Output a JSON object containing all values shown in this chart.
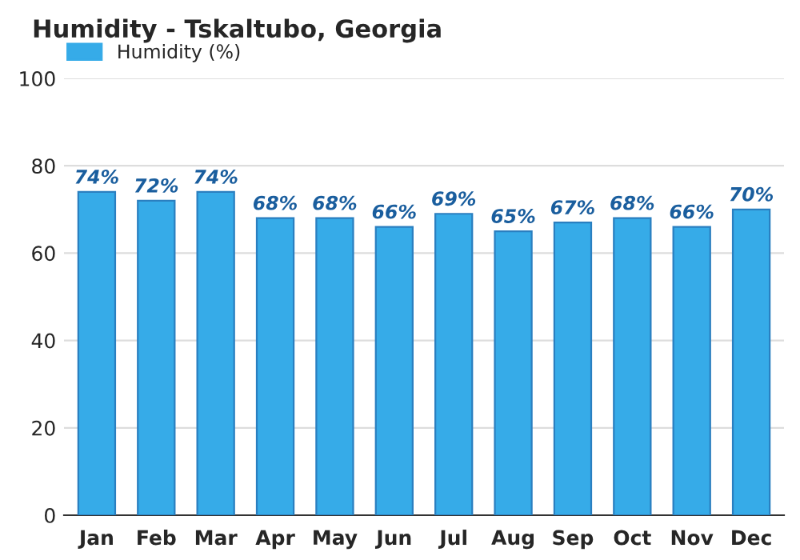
{
  "chart_data": {
    "type": "bar",
    "title": "Humidity - Tskaltubo, Georgia",
    "categories": [
      "Jan",
      "Feb",
      "Mar",
      "Apr",
      "May",
      "Jun",
      "Jul",
      "Aug",
      "Sep",
      "Oct",
      "Nov",
      "Dec"
    ],
    "series": [
      {
        "name": "Humidity (%)",
        "color": "#36abe8",
        "values": [
          74,
          72,
          74,
          68,
          68,
          66,
          69,
          65,
          67,
          68,
          66,
          70
        ]
      }
    ],
    "value_labels": [
      "74%",
      "72%",
      "74%",
      "68%",
      "68%",
      "66%",
      "69%",
      "65%",
      "67%",
      "68%",
      "66%",
      "70%"
    ],
    "ylim": [
      0,
      100
    ],
    "yticks": [
      0,
      20,
      40,
      60,
      80,
      100
    ],
    "grid": "y",
    "legend": "top left"
  }
}
